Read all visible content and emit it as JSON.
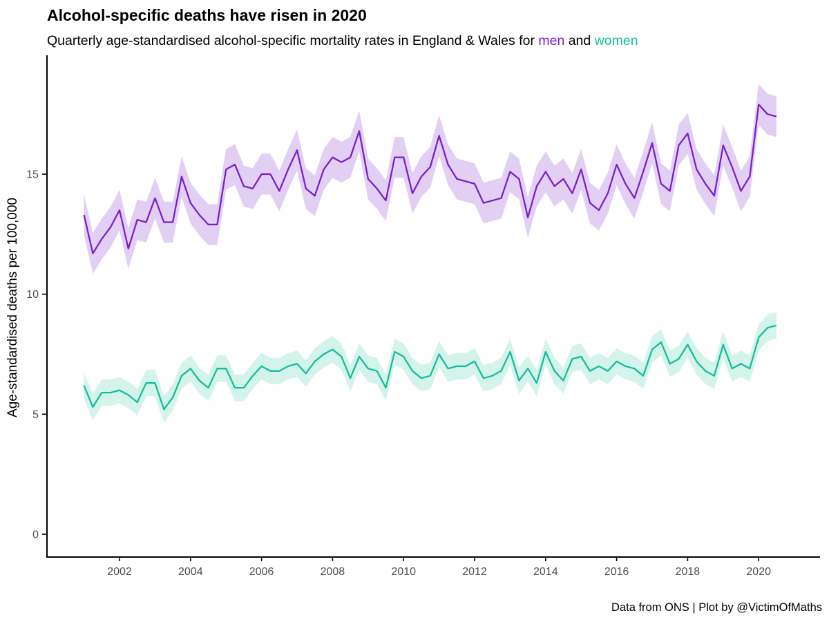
{
  "header": {
    "title": "Alcohol-specific deaths have risen in 2020",
    "subtitle_prefix": "Quarterly age-standardised alcohol-specific mortality rates in England & Wales for ",
    "subtitle_men": "men",
    "subtitle_and": " and ",
    "subtitle_women": "women"
  },
  "footer": {
    "caption": "Data from ONS | Plot by @VictimOfMaths"
  },
  "colors": {
    "men_line": "#7a20c8",
    "men_ribbon": "#e2cff4",
    "women_line": "#13be9b",
    "women_ribbon": "#d4f4eb",
    "axis_line": "#000000",
    "tick_text": "#4d4d4d"
  },
  "chart_data": {
    "type": "line",
    "title": "Alcohol-specific deaths have risen in 2020",
    "subtitle": "Quarterly age-standardised alcohol-specific mortality rates in England & Wales for men and women",
    "caption": "Data from ONS | Plot by @VictimOfMaths",
    "xlabel": "",
    "ylabel": "Age-standardised deaths per 100,000",
    "x_unit": "year (quarterly data)",
    "x_start": 2001.0,
    "x_step": 0.25,
    "xlim": [
      2000.95,
      2021.05
    ],
    "ylim": [
      -0.95,
      19.0
    ],
    "x_ticks": [
      2002,
      2004,
      2006,
      2008,
      2010,
      2012,
      2014,
      2016,
      2018,
      2020
    ],
    "y_ticks": [
      0,
      5,
      10,
      15
    ],
    "grid": false,
    "legend_position": "inline-in-subtitle",
    "series": [
      {
        "name": "men",
        "color": "#7a20c8",
        "ribbon_color": "#e2cff4",
        "ci_halfwidth": 0.85,
        "values": [
          13.3,
          11.7,
          12.3,
          12.8,
          13.5,
          11.9,
          13.1,
          13.0,
          14.0,
          13.0,
          13.0,
          14.9,
          13.8,
          13.3,
          12.9,
          12.9,
          15.2,
          15.4,
          14.5,
          14.4,
          15.0,
          15.0,
          14.3,
          15.2,
          16.0,
          14.4,
          14.1,
          15.2,
          15.7,
          15.5,
          15.7,
          16.8,
          14.8,
          14.4,
          13.9,
          15.7,
          15.7,
          14.2,
          14.9,
          15.3,
          16.6,
          15.4,
          14.8,
          14.7,
          14.6,
          13.8,
          13.9,
          14.0,
          15.1,
          14.8,
          13.2,
          14.5,
          15.1,
          14.5,
          14.8,
          14.2,
          15.2,
          13.8,
          13.5,
          14.2,
          15.4,
          14.6,
          14.0,
          15.1,
          16.3,
          14.6,
          14.3,
          16.2,
          16.7,
          15.2,
          14.6,
          14.1,
          16.2,
          15.3,
          14.3,
          14.9,
          17.9,
          17.5,
          17.4
        ]
      },
      {
        "name": "women",
        "color": "#13be9b",
        "ribbon_color": "#d4f4eb",
        "ci_halfwidth": 0.55,
        "values": [
          6.2,
          5.3,
          5.9,
          5.9,
          6.0,
          5.8,
          5.5,
          6.3,
          6.3,
          5.2,
          5.7,
          6.6,
          6.9,
          6.4,
          6.1,
          6.9,
          6.9,
          6.1,
          6.1,
          6.6,
          7.0,
          6.8,
          6.8,
          7.0,
          7.1,
          6.7,
          7.2,
          7.5,
          7.7,
          7.4,
          6.5,
          7.4,
          6.9,
          6.8,
          6.1,
          7.6,
          7.4,
          6.8,
          6.5,
          6.6,
          7.5,
          6.9,
          7.0,
          7.0,
          7.2,
          6.5,
          6.6,
          6.8,
          7.6,
          6.4,
          6.9,
          6.3,
          7.6,
          6.8,
          6.4,
          7.3,
          7.4,
          6.8,
          7.0,
          6.8,
          7.2,
          7.0,
          6.9,
          6.6,
          7.7,
          8.0,
          7.1,
          7.3,
          7.9,
          7.2,
          6.8,
          6.6,
          7.9,
          6.9,
          7.1,
          6.9,
          8.2,
          8.6,
          8.7
        ]
      }
    ]
  }
}
